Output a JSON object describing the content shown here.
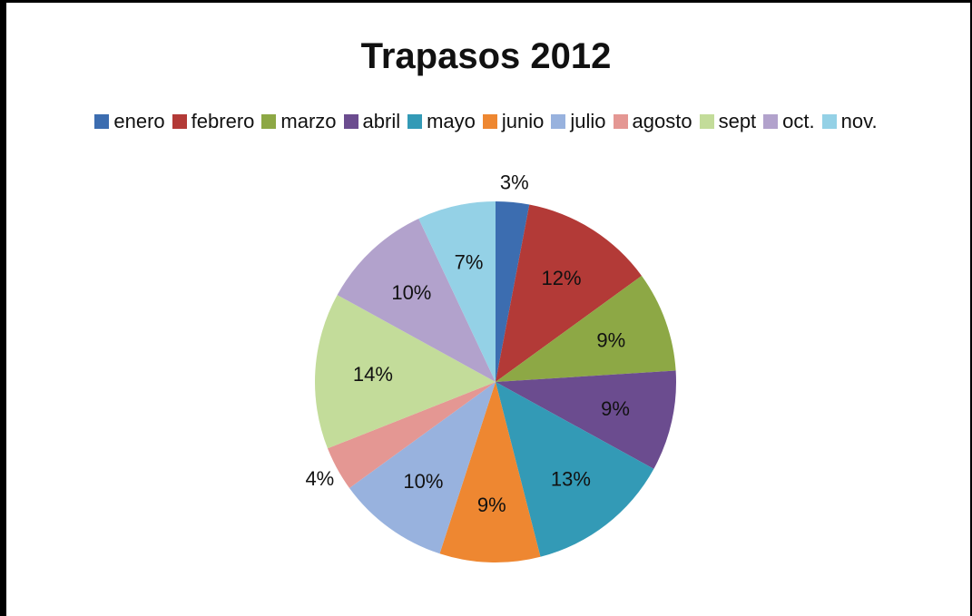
{
  "chart_data": {
    "type": "pie",
    "title": "Trapasos 2012",
    "legend_position": "top",
    "categories": [
      "enero",
      "febrero",
      "marzo",
      "abril",
      "mayo",
      "junio",
      "julio",
      "agosto",
      "sept",
      "oct.",
      "nov."
    ],
    "values": [
      3,
      12,
      9,
      9,
      13,
      9,
      10,
      4,
      14,
      10,
      7
    ],
    "labels": [
      "3%",
      "12%",
      "9%",
      "9%",
      "13%",
      "9%",
      "10%",
      "4%",
      "14%",
      "10%",
      "7%"
    ],
    "colors": [
      "#3C6DB0",
      "#B33A37",
      "#8DA845",
      "#6B4C8F",
      "#339AB6",
      "#EE8731",
      "#98B2DE",
      "#E49793",
      "#C3DC9A",
      "#B2A2CC",
      "#94D1E6"
    ]
  }
}
